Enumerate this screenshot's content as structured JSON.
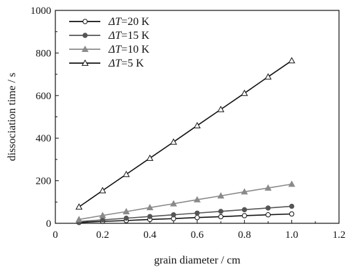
{
  "chart_data": {
    "type": "line",
    "title": "",
    "xlabel": "grain diameter / cm",
    "ylabel": "dissociation time / s",
    "xlim": [
      0,
      1.2
    ],
    "ylim": [
      0,
      1000
    ],
    "xticks": [
      "0",
      "0.2",
      "0.4",
      "0.6",
      "0.8",
      "1.0",
      "1.2"
    ],
    "yticks": [
      "0",
      "200",
      "400",
      "600",
      "800",
      "1000"
    ],
    "grid": false,
    "legend_position": "top-left",
    "x": [
      0.1,
      0.2,
      0.3,
      0.4,
      0.5,
      0.6,
      0.7,
      0.8,
      0.9,
      1.0
    ],
    "series": [
      {
        "name_prefix": "ΔT",
        "name_value": "=20 K",
        "marker": "circle-open",
        "color": "#111111",
        "values": [
          4,
          9,
          13,
          18,
          22,
          27,
          31,
          36,
          40,
          44
        ]
      },
      {
        "name_prefix": "ΔT",
        "name_value": "=15 K",
        "marker": "circle-filled",
        "color": "#555555",
        "values": [
          8,
          16,
          24,
          32,
          40,
          48,
          56,
          64,
          72,
          80
        ]
      },
      {
        "name_prefix": "ΔT",
        "name_value": "=10 K",
        "marker": "triangle-filled",
        "color": "#8a8a8a",
        "values": [
          18,
          37,
          55,
          74,
          92,
          111,
          129,
          148,
          166,
          184
        ]
      },
      {
        "name_prefix": "ΔT",
        "name_value": "=5 K",
        "marker": "triangle-open",
        "color": "#111111",
        "values": [
          77,
          154,
          230,
          306,
          382,
          459,
          535,
          611,
          688,
          764
        ]
      }
    ]
  }
}
